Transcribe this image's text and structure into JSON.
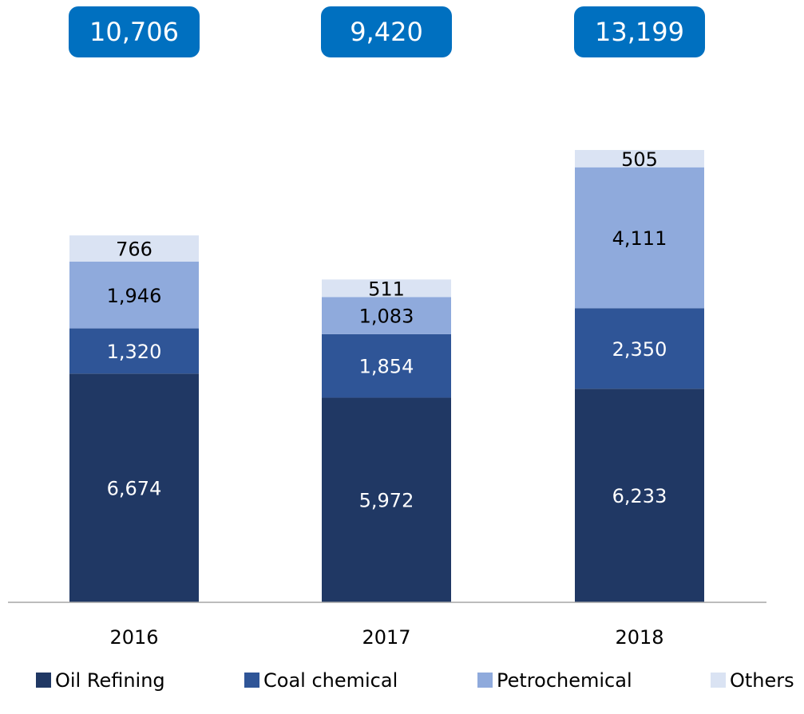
{
  "chart_data": {
    "type": "stacked_bar",
    "categories": [
      "2016",
      "2017",
      "2018"
    ],
    "series": [
      {
        "name": "Oil Refining",
        "color": "#203864",
        "values": [
          6674,
          5972,
          6233
        ],
        "value_labels": [
          "6,674",
          "5,972",
          "6,233"
        ]
      },
      {
        "name": "Coal chemical",
        "color": "#2f5597",
        "values": [
          1320,
          1854,
          2350
        ],
        "value_labels": [
          "1,320",
          "1,854",
          "2,350"
        ]
      },
      {
        "name": "Petrochemical",
        "color": "#8faadc",
        "values": [
          1946,
          1083,
          4111
        ],
        "value_labels": [
          "1,946",
          "1,083",
          "4,111"
        ]
      },
      {
        "name": "Others",
        "color": "#dae3f3",
        "values": [
          766,
          511,
          505
        ]
      }
    ],
    "totals": [
      10706,
      9420,
      13199
    ],
    "total_labels": [
      "10,706",
      "9,420",
      "13,199"
    ],
    "total_box_color": "#0070c0",
    "legend": "bottom"
  }
}
